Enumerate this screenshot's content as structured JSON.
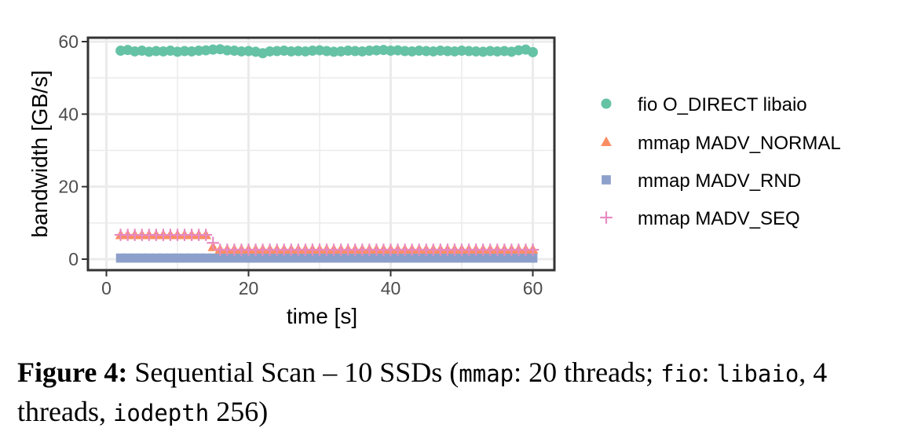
{
  "chart_data": {
    "type": "scatter",
    "xlabel": "time [s]",
    "ylabel": "bandwidth [GB/s]",
    "xlim": [
      0,
      60
    ],
    "ylim": [
      0,
      60
    ],
    "xticks": [
      0,
      20,
      40,
      60
    ],
    "yticks": [
      0,
      20,
      40,
      60
    ],
    "grid": true,
    "legend_position": "right",
    "series": [
      {
        "name": "fio O_DIRECT libaio",
        "marker": "circle",
        "color": "#66c2a5",
        "x": [
          2,
          3,
          4,
          5,
          6,
          7,
          8,
          9,
          10,
          11,
          12,
          13,
          14,
          15,
          16,
          17,
          18,
          19,
          20,
          21,
          22,
          23,
          24,
          25,
          26,
          27,
          28,
          29,
          30,
          31,
          32,
          33,
          34,
          35,
          36,
          37,
          38,
          39,
          40,
          41,
          42,
          43,
          44,
          45,
          46,
          47,
          48,
          49,
          50,
          51,
          52,
          53,
          54,
          55,
          56,
          57,
          58,
          59,
          60
        ],
        "y": [
          57.5,
          57.7,
          57.3,
          57.5,
          57.2,
          57.4,
          57.3,
          57.5,
          57.2,
          57.4,
          57.3,
          57.5,
          57.6,
          57.8,
          57.9,
          57.6,
          57.5,
          57.3,
          57.4,
          57.2,
          56.8,
          57.3,
          57.4,
          57.5,
          57.3,
          57.4,
          57.3,
          57.5,
          57.6,
          57.4,
          57.2,
          57.3,
          57.5,
          57.4,
          57.3,
          57.5,
          57.6,
          57.7,
          57.5,
          57.6,
          57.4,
          57.3,
          57.5,
          57.4,
          57.3,
          57.5,
          57.4,
          57.3,
          57.5,
          57.4,
          57.3,
          57.2,
          57.4,
          57.3,
          57.4,
          57.2,
          57.6,
          57.8,
          57.1
        ]
      },
      {
        "name": "mmap MADV_NORMAL",
        "marker": "triangle",
        "color": "#fc8d62",
        "x": [
          2,
          3,
          4,
          5,
          6,
          7,
          8,
          9,
          10,
          11,
          12,
          13,
          14,
          15,
          16,
          17,
          18,
          19,
          20,
          21,
          22,
          23,
          24,
          25,
          26,
          27,
          28,
          29,
          30,
          31,
          32,
          33,
          34,
          35,
          36,
          37,
          38,
          39,
          40,
          41,
          42,
          43,
          44,
          45,
          46,
          47,
          48,
          49,
          50,
          51,
          52,
          53,
          54,
          55,
          56,
          57,
          58,
          59,
          60
        ],
        "y": [
          6.6,
          6.6,
          6.6,
          6.6,
          6.6,
          6.6,
          6.6,
          6.6,
          6.6,
          6.6,
          6.6,
          6.6,
          6.6,
          3.3,
          2.6,
          2.6,
          2.6,
          2.6,
          2.6,
          2.6,
          2.6,
          2.6,
          2.6,
          2.6,
          2.6,
          2.6,
          2.6,
          2.6,
          2.6,
          2.6,
          2.6,
          2.6,
          2.6,
          2.6,
          2.6,
          2.6,
          2.6,
          2.6,
          2.6,
          2.6,
          2.6,
          2.6,
          2.6,
          2.6,
          2.6,
          2.6,
          2.6,
          2.6,
          2.6,
          2.6,
          2.6,
          2.6,
          2.6,
          2.6,
          2.6,
          2.6,
          2.6,
          2.6,
          2.6
        ]
      },
      {
        "name": "mmap MADV_RND",
        "marker": "square",
        "color": "#8da0cb",
        "x": [
          2,
          3,
          4,
          5,
          6,
          7,
          8,
          9,
          10,
          11,
          12,
          13,
          14,
          15,
          16,
          17,
          18,
          19,
          20,
          21,
          22,
          23,
          24,
          25,
          26,
          27,
          28,
          29,
          30,
          31,
          32,
          33,
          34,
          35,
          36,
          37,
          38,
          39,
          40,
          41,
          42,
          43,
          44,
          45,
          46,
          47,
          48,
          49,
          50,
          51,
          52,
          53,
          54,
          55,
          56,
          57,
          58,
          59,
          60
        ],
        "y": [
          0.3,
          0.3,
          0.3,
          0.3,
          0.3,
          0.3,
          0.3,
          0.3,
          0.3,
          0.3,
          0.3,
          0.3,
          0.3,
          0.3,
          0.3,
          0.3,
          0.3,
          0.3,
          0.3,
          0.3,
          0.3,
          0.3,
          0.3,
          0.3,
          0.3,
          0.3,
          0.3,
          0.3,
          0.3,
          0.3,
          0.3,
          0.3,
          0.3,
          0.3,
          0.3,
          0.3,
          0.3,
          0.3,
          0.3,
          0.3,
          0.3,
          0.3,
          0.3,
          0.3,
          0.3,
          0.3,
          0.3,
          0.3,
          0.3,
          0.3,
          0.3,
          0.3,
          0.3,
          0.3,
          0.3,
          0.3,
          0.3,
          0.3,
          0.3
        ]
      },
      {
        "name": "mmap MADV_SEQ",
        "marker": "plus",
        "color": "#e78ac3",
        "x": [
          2,
          3,
          4,
          5,
          6,
          7,
          8,
          9,
          10,
          11,
          12,
          13,
          14,
          15,
          16,
          17,
          18,
          19,
          20,
          21,
          22,
          23,
          24,
          25,
          26,
          27,
          28,
          29,
          30,
          31,
          32,
          33,
          34,
          35,
          36,
          37,
          38,
          39,
          40,
          41,
          42,
          43,
          44,
          45,
          46,
          47,
          48,
          49,
          50,
          51,
          52,
          53,
          54,
          55,
          56,
          57,
          58,
          59,
          60
        ],
        "y": [
          6.7,
          6.7,
          6.7,
          6.7,
          6.7,
          6.7,
          6.7,
          6.7,
          6.7,
          6.7,
          6.7,
          6.7,
          6.7,
          4.5,
          2.6,
          2.6,
          2.6,
          2.6,
          2.6,
          2.6,
          2.6,
          2.6,
          2.6,
          2.6,
          2.6,
          2.6,
          2.6,
          2.6,
          2.6,
          2.6,
          2.6,
          2.6,
          2.6,
          2.6,
          2.6,
          2.6,
          2.6,
          2.6,
          2.6,
          2.6,
          2.6,
          2.6,
          2.6,
          2.6,
          2.6,
          2.6,
          2.6,
          2.6,
          2.6,
          2.6,
          2.6,
          2.6,
          2.6,
          2.6,
          2.6,
          2.6,
          2.6,
          2.6,
          2.6
        ]
      }
    ]
  },
  "caption": {
    "label": "Figure 4:",
    "text_1": " Sequential Scan – 10 SSDs (",
    "code_mmap": "mmap",
    "text_2": ": 20 threads; ",
    "code_fio": "fio",
    "text_3": ": ",
    "code_libaio": "libaio",
    "text_4": ", 4 threads, ",
    "code_iodepth": "iodepth",
    "text_5": " 256)"
  }
}
